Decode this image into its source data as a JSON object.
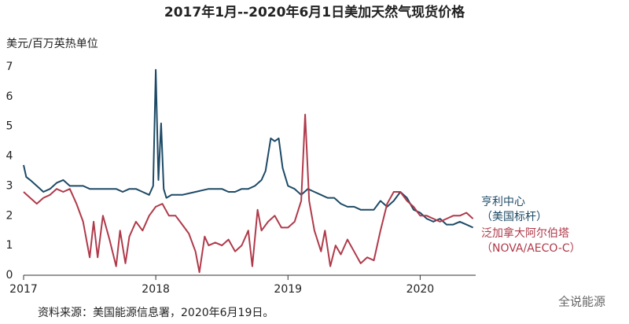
{
  "chart_data": {
    "type": "line",
    "title": "2017年1月--2020年6月1日美加天然气现货价格",
    "y_label": "美元/百万英热单位",
    "source": "资料来源：美国能源信息署，2020年6月19日。",
    "watermark": "全说能源",
    "xlim": [
      2017,
      2020.42
    ],
    "xticks": [
      2017,
      2018,
      2019,
      2020
    ],
    "ylim": [
      0,
      7
    ],
    "yticks": [
      0,
      1,
      2,
      3,
      4,
      5,
      6,
      7
    ],
    "grid": false,
    "series": [
      {
        "name": [
          "亨利中心",
          "（美国标杆）"
        ],
        "color": "#1d4a66",
        "x": [
          2017.0,
          2017.02,
          2017.05,
          2017.1,
          2017.15,
          2017.2,
          2017.25,
          2017.3,
          2017.35,
          2017.4,
          2017.45,
          2017.5,
          2017.55,
          2017.6,
          2017.65,
          2017.7,
          2017.75,
          2017.8,
          2017.85,
          2017.9,
          2017.95,
          2017.98,
          2018.0,
          2018.02,
          2018.04,
          2018.06,
          2018.08,
          2018.12,
          2018.2,
          2018.3,
          2018.4,
          2018.5,
          2018.55,
          2018.6,
          2018.65,
          2018.7,
          2018.75,
          2018.8,
          2018.83,
          2018.87,
          2018.9,
          2018.93,
          2018.96,
          2019.0,
          2019.05,
          2019.1,
          2019.15,
          2019.2,
          2019.25,
          2019.3,
          2019.35,
          2019.4,
          2019.45,
          2019.5,
          2019.55,
          2019.6,
          2019.65,
          2019.7,
          2019.75,
          2019.8,
          2019.85,
          2019.9,
          2019.95,
          2020.0,
          2020.05,
          2020.1,
          2020.15,
          2020.2,
          2020.25,
          2020.3,
          2020.35,
          2020.4
        ],
        "values": [
          3.7,
          3.3,
          3.2,
          3.0,
          2.8,
          2.9,
          3.1,
          3.2,
          3.0,
          3.0,
          3.0,
          2.9,
          2.9,
          2.9,
          2.9,
          2.9,
          2.8,
          2.9,
          2.9,
          2.8,
          2.7,
          3.0,
          6.9,
          3.2,
          5.1,
          2.9,
          2.6,
          2.7,
          2.7,
          2.8,
          2.9,
          2.9,
          2.8,
          2.8,
          2.9,
          2.9,
          3.0,
          3.2,
          3.5,
          4.6,
          4.5,
          4.6,
          3.6,
          3.0,
          2.9,
          2.7,
          2.9,
          2.8,
          2.7,
          2.6,
          2.6,
          2.4,
          2.3,
          2.3,
          2.2,
          2.2,
          2.2,
          2.5,
          2.3,
          2.5,
          2.8,
          2.6,
          2.2,
          2.1,
          1.9,
          1.8,
          1.9,
          1.7,
          1.7,
          1.8,
          1.7,
          1.6
        ]
      },
      {
        "name": [
          "泛加拿大阿尔伯塔",
          "（NOVA/AECO-C）"
        ],
        "color": "#b03a4a",
        "x": [
          2017.0,
          2017.05,
          2017.1,
          2017.15,
          2017.2,
          2017.25,
          2017.3,
          2017.35,
          2017.4,
          2017.45,
          2017.5,
          2017.53,
          2017.56,
          2017.6,
          2017.65,
          2017.7,
          2017.73,
          2017.77,
          2017.8,
          2017.85,
          2017.9,
          2017.95,
          2018.0,
          2018.05,
          2018.1,
          2018.15,
          2018.2,
          2018.25,
          2018.3,
          2018.33,
          2018.37,
          2018.4,
          2018.45,
          2018.5,
          2018.55,
          2018.6,
          2018.65,
          2018.7,
          2018.73,
          2018.77,
          2018.8,
          2018.85,
          2018.9,
          2018.95,
          2019.0,
          2019.05,
          2019.1,
          2019.13,
          2019.16,
          2019.2,
          2019.25,
          2019.28,
          2019.32,
          2019.36,
          2019.4,
          2019.45,
          2019.5,
          2019.55,
          2019.6,
          2019.65,
          2019.7,
          2019.75,
          2019.8,
          2019.85,
          2019.9,
          2019.95,
          2020.0,
          2020.05,
          2020.1,
          2020.15,
          2020.2,
          2020.25,
          2020.3,
          2020.35,
          2020.4
        ],
        "values": [
          2.8,
          2.6,
          2.4,
          2.6,
          2.7,
          2.9,
          2.8,
          2.9,
          2.4,
          1.8,
          0.6,
          1.8,
          0.6,
          2.0,
          1.2,
          0.3,
          1.5,
          0.4,
          1.3,
          1.8,
          1.5,
          2.0,
          2.3,
          2.4,
          2.0,
          2.0,
          1.7,
          1.4,
          0.8,
          0.1,
          1.3,
          1.0,
          1.1,
          1.0,
          1.2,
          0.8,
          1.0,
          1.5,
          0.3,
          2.2,
          1.5,
          1.8,
          2.0,
          1.6,
          1.6,
          1.8,
          2.5,
          5.4,
          2.5,
          1.5,
          0.8,
          1.5,
          0.3,
          1.0,
          0.7,
          1.2,
          0.8,
          0.4,
          0.6,
          0.5,
          1.5,
          2.4,
          2.8,
          2.8,
          2.5,
          2.3,
          2.0,
          2.0,
          1.9,
          1.8,
          1.9,
          2.0,
          2.0,
          2.1,
          1.9
        ]
      }
    ]
  }
}
